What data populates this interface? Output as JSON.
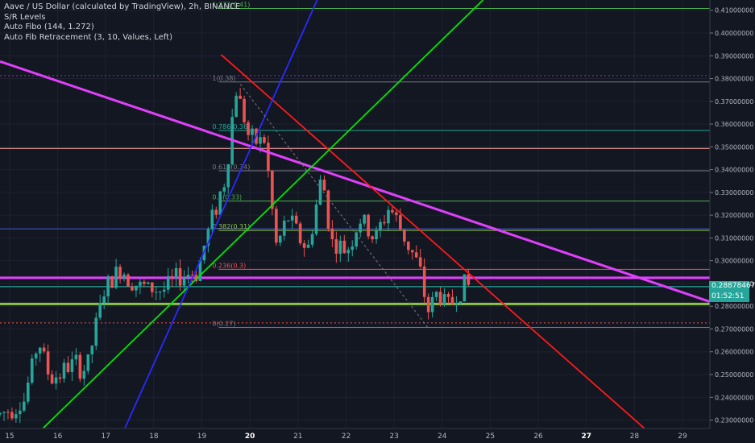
{
  "header": {
    "symbol_line": "Aave / US Dollar (calculated by TradingView), 2h, BINANCE",
    "indicators": [
      "S/R Levels",
      "Auto Fibo (144, 1.272)",
      "Auto Fib Retracement (3, 10, Values, Left)"
    ]
  },
  "price_badges": [
    {
      "label": "0.28878467",
      "color": "#26a69a",
      "value": 0.28878467
    },
    {
      "label": "01:52:51",
      "color": "#26a69a",
      "value": 0.2843
    }
  ],
  "colors": {
    "background": "#131722",
    "grid": "#1e2230",
    "up": "#26a69a",
    "down": "#ef5350",
    "axis_text": "#b2b5be",
    "magenta": "#e040fb",
    "red_line": "#ff1a1a",
    "green_line": "#00e600",
    "blue_line": "#2a2aff"
  },
  "chart_data": {
    "type": "candlestick",
    "x_axis": {
      "labels": [
        "15",
        "16",
        "17",
        "18",
        "19",
        "20",
        "21",
        "22",
        "23",
        "24",
        "25",
        "26",
        "27",
        "28",
        "29"
      ],
      "bold": [
        "20",
        "27"
      ],
      "range_days": [
        14.8,
        29.57
      ]
    },
    "y_axis": {
      "range": [
        0.2263,
        0.4145
      ],
      "ticks": [
        "0.23000000",
        "0.24000000",
        "0.25000000",
        "0.26000000",
        "0.27000000",
        "0.28000000",
        "0.29000000",
        "0.30000000",
        "0.31000000",
        "0.32000000",
        "0.33000000",
        "0.34000000",
        "0.35000000",
        "0.36000000",
        "0.37000000",
        "0.38000000",
        "0.39000000",
        "0.40000000",
        "0.41000000"
      ]
    },
    "fib_levels": [
      {
        "label": "1.272(0.41)",
        "price": 0.4108,
        "color": "#4caf50"
      },
      {
        "label": "1(0.38)",
        "price": 0.3785,
        "color": "#787b86"
      },
      {
        "label": "0.786(0.36)",
        "price": 0.3572,
        "color": "#26a69a"
      },
      {
        "label": "0.618(0.34)",
        "price": 0.3395,
        "color": "#787b86"
      },
      {
        "label": "0.5(0.33)",
        "price": 0.3262,
        "color": "#4caf50"
      },
      {
        "label": "0.382(0.31)",
        "price": 0.3133,
        "color": "#8bc34a"
      },
      {
        "label": "0.236(0.3)",
        "price": 0.2962,
        "color": "#ef5350"
      },
      {
        "label": "0(0.27)",
        "price": 0.2707,
        "color": "#787b86"
      }
    ],
    "sr_levels": [
      {
        "price": 0.3813,
        "color": "#9c27b0",
        "style": "dotted"
      },
      {
        "price": 0.3493,
        "color": "#ef9a9a",
        "style": "solid"
      },
      {
        "price": 0.314,
        "color": "#3949ab",
        "style": "solid"
      },
      {
        "price": 0.2925,
        "color": "#e040fb",
        "style": "thick"
      },
      {
        "price": 0.2886,
        "color": "#26a69a",
        "style": "solid"
      },
      {
        "price": 0.281,
        "color": "#8bc34a",
        "style": "thick"
      },
      {
        "price": 0.2727,
        "color": "#ef5350",
        "style": "dotted"
      }
    ],
    "trendlines": [
      {
        "color": "#e040fb",
        "width": 3,
        "from": [
          14.8,
          0.3875
        ],
        "to": [
          29.57,
          0.282
        ]
      },
      {
        "color": "#ff1a1a",
        "width": 1.8,
        "from": [
          19.4,
          0.3905
        ],
        "to": [
          28.2,
          0.2265
        ]
      },
      {
        "color": "#00e600",
        "width": 1.8,
        "from": [
          15.7,
          0.2265
        ],
        "to": [
          24.85,
          0.4145
        ]
      },
      {
        "color": "#2a2aff",
        "width": 1.8,
        "from": [
          17.4,
          0.2265
        ],
        "to": [
          21.4,
          0.4145
        ]
      },
      {
        "color": "#787b86",
        "width": 1,
        "dash": true,
        "from": [
          19.8,
          0.3775
        ],
        "to": [
          23.7,
          0.2707
        ]
      }
    ],
    "candles_summary": {
      "start_day": 14.8,
      "step_days": 0.0833,
      "close_path": [
        [
          14.8,
          0.2325
        ],
        [
          15.3,
          0.2385
        ],
        [
          15.6,
          0.2655
        ],
        [
          15.85,
          0.2475
        ],
        [
          16.3,
          0.2545
        ],
        [
          16.6,
          0.252
        ],
        [
          16.95,
          0.286
        ],
        [
          17.3,
          0.2965
        ],
        [
          17.7,
          0.2885
        ],
        [
          18.2,
          0.287
        ],
        [
          18.6,
          0.294
        ],
        [
          18.9,
          0.295
        ],
        [
          19.2,
          0.318
        ],
        [
          19.5,
          0.337
        ],
        [
          19.7,
          0.376
        ],
        [
          19.85,
          0.366
        ],
        [
          20.0,
          0.352
        ],
        [
          20.3,
          0.353
        ],
        [
          20.55,
          0.306
        ],
        [
          20.8,
          0.319
        ],
        [
          21.2,
          0.304
        ],
        [
          21.5,
          0.338
        ],
        [
          21.7,
          0.308
        ],
        [
          22.0,
          0.304
        ],
        [
          22.3,
          0.318
        ],
        [
          22.6,
          0.309
        ],
        [
          22.9,
          0.324
        ],
        [
          23.2,
          0.311
        ],
        [
          23.5,
          0.298
        ],
        [
          23.7,
          0.278
        ],
        [
          23.9,
          0.286
        ],
        [
          24.15,
          0.28
        ],
        [
          24.3,
          0.285
        ],
        [
          24.45,
          0.29
        ],
        [
          24.55,
          0.2888
        ]
      ],
      "last_close": 0.28878467
    }
  }
}
